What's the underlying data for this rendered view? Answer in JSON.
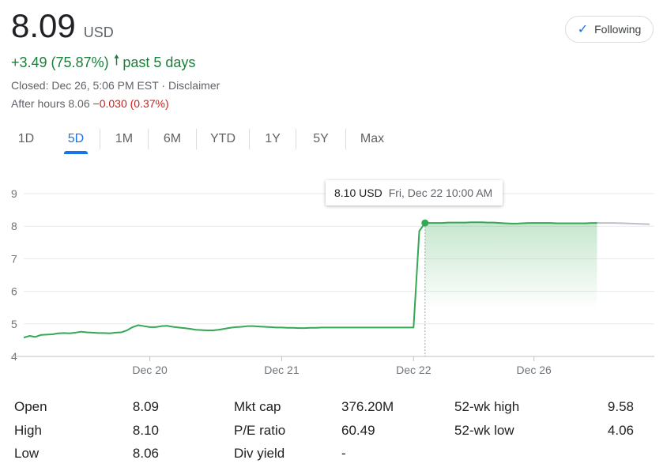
{
  "quote": {
    "price": "8.09",
    "currency": "USD",
    "change": "+3.49 (75.87%)",
    "change_period": "past 5 days",
    "closed_text": "Closed: Dec 26, 5:06 PM EST",
    "disclaimer": "Disclaimer",
    "after_hours_label": "After hours 8.06",
    "after_hours_change": "−0.030 (0.37%)"
  },
  "follow_button": {
    "label": "Following"
  },
  "ranges": [
    "1D",
    "5D",
    "1M",
    "6M",
    "YTD",
    "1Y",
    "5Y",
    "Max"
  ],
  "active_range": "5D",
  "tooltip": {
    "value": "8.10 USD",
    "time": "Fri, Dec 22 10:00 AM"
  },
  "colors": {
    "line": "#34a853",
    "fill": "#34a853",
    "gridline": "#e8eaed",
    "accent": "#1a73e8"
  },
  "chart_data": {
    "type": "area",
    "yticks": [
      4,
      5,
      6,
      7,
      8,
      9
    ],
    "ylim": [
      4,
      9
    ],
    "xticks": [
      {
        "label": "Dec 20",
        "x": 22
      },
      {
        "label": "Dec 21",
        "x": 45
      },
      {
        "label": "Dec 22",
        "x": 68
      },
      {
        "label": "Dec 26",
        "x": 89
      }
    ],
    "xlim": [
      0,
      110
    ],
    "highlight_index": 70,
    "highlight_start": 70,
    "values": [
      4.58,
      4.63,
      4.6,
      4.66,
      4.67,
      4.68,
      4.71,
      4.72,
      4.71,
      4.73,
      4.76,
      4.74,
      4.73,
      4.72,
      4.72,
      4.71,
      4.73,
      4.74,
      4.8,
      4.9,
      4.96,
      4.93,
      4.9,
      4.9,
      4.93,
      4.94,
      4.91,
      4.89,
      4.87,
      4.85,
      4.82,
      4.81,
      4.8,
      4.8,
      4.82,
      4.85,
      4.88,
      4.9,
      4.91,
      4.93,
      4.93,
      4.92,
      4.91,
      4.9,
      4.89,
      4.89,
      4.88,
      4.88,
      4.87,
      4.87,
      4.88,
      4.88,
      4.89,
      4.89,
      4.89,
      4.89,
      4.89,
      4.89,
      4.89,
      4.89,
      4.89,
      4.89,
      4.89,
      4.89,
      4.89,
      4.89,
      4.89,
      4.89,
      4.89,
      7.85,
      8.1,
      8.1,
      8.1,
      8.1,
      8.11,
      8.11,
      8.11,
      8.11,
      8.12,
      8.12,
      8.12,
      8.11,
      8.11,
      8.1,
      8.09,
      8.08,
      8.08,
      8.09,
      8.1,
      8.1,
      8.1,
      8.1,
      8.1,
      8.09,
      8.09,
      8.09,
      8.09,
      8.09,
      8.09,
      8.1,
      8.1
    ],
    "after_hours_values": [
      8.1,
      8.1,
      8.08,
      8.06
    ]
  },
  "stats": [
    {
      "label": "Open",
      "value": "8.09"
    },
    {
      "label": "High",
      "value": "8.10"
    },
    {
      "label": "Low",
      "value": "8.06"
    },
    {
      "label": "Mkt cap",
      "value": "376.20M"
    },
    {
      "label": "P/E ratio",
      "value": "60.49"
    },
    {
      "label": "Div yield",
      "value": "-"
    },
    {
      "label": "52-wk high",
      "value": "9.58"
    },
    {
      "label": "52-wk low",
      "value": "4.06"
    }
  ]
}
